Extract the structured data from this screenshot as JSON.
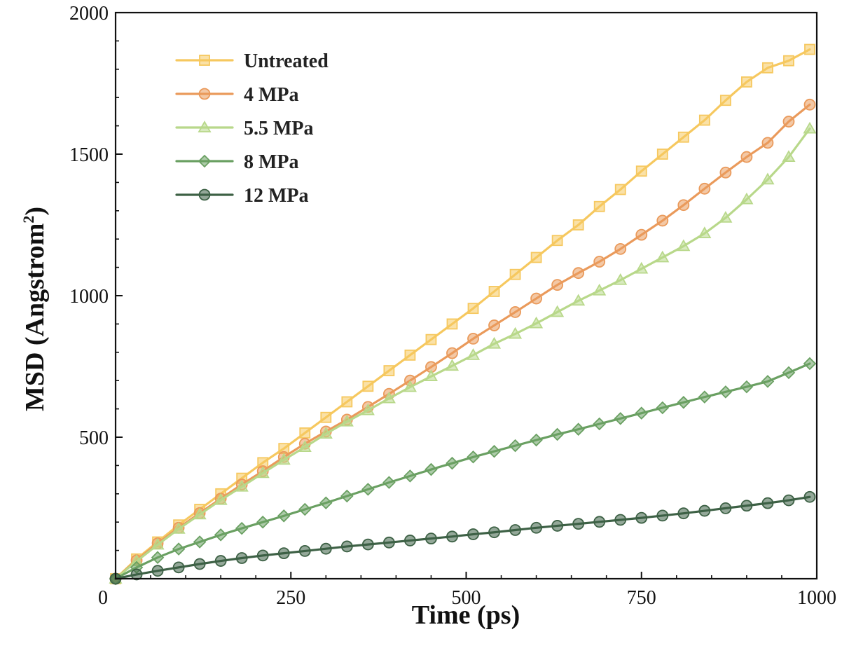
{
  "chart_data": {
    "type": "line",
    "title": "",
    "xlabel": "Time (ps)",
    "ylabel_main": "MSD (Angstrom",
    "ylabel_sup": "2",
    "ylabel_close": ")",
    "xlim": [
      0,
      1000
    ],
    "ylim": [
      0,
      2000
    ],
    "xticks": [
      0,
      250,
      500,
      750,
      1000
    ],
    "yticks": [
      500,
      1000,
      1500,
      2000
    ],
    "x_tick_labels": [
      "0",
      "250",
      "500",
      "750",
      "1000"
    ],
    "y_tick_labels": [
      "500",
      "1000",
      "1500",
      "2000"
    ],
    "legend_position": "top-left",
    "x": [
      0,
      30,
      60,
      90,
      120,
      150,
      180,
      210,
      240,
      270,
      300,
      330,
      360,
      390,
      420,
      450,
      480,
      510,
      540,
      570,
      600,
      630,
      660,
      690,
      720,
      750,
      780,
      810,
      840,
      870,
      900,
      930,
      960,
      990
    ],
    "series": [
      {
        "name": "Untreated",
        "color": "#f6c85f",
        "marker": "square",
        "values": [
          0,
          70,
          130,
          190,
          245,
          300,
          355,
          410,
          460,
          515,
          570,
          625,
          680,
          735,
          790,
          845,
          900,
          955,
          1015,
          1075,
          1135,
          1195,
          1250,
          1315,
          1375,
          1440,
          1500,
          1560,
          1620,
          1690,
          1755,
          1805,
          1830,
          1870
        ]
      },
      {
        "name": "4 MPa",
        "color": "#ea9a5b",
        "marker": "circle",
        "values": [
          0,
          65,
          125,
          180,
          232,
          283,
          333,
          380,
          430,
          477,
          520,
          562,
          607,
          653,
          700,
          748,
          797,
          848,
          895,
          942,
          990,
          1038,
          1080,
          1120,
          1165,
          1215,
          1265,
          1320,
          1378,
          1435,
          1490,
          1540,
          1615,
          1675
        ]
      },
      {
        "name": "5.5 MPa",
        "color": "#b8d88a",
        "marker": "triangle",
        "values": [
          0,
          62,
          120,
          176,
          227,
          278,
          325,
          373,
          420,
          465,
          512,
          555,
          595,
          637,
          677,
          715,
          752,
          790,
          830,
          865,
          902,
          942,
          982,
          1018,
          1055,
          1095,
          1135,
          1175,
          1220,
          1275,
          1340,
          1410,
          1490,
          1590
        ]
      },
      {
        "name": "8 MPa",
        "color": "#6aa062",
        "marker": "diamond",
        "values": [
          0,
          40,
          75,
          105,
          130,
          155,
          178,
          200,
          222,
          245,
          268,
          292,
          316,
          340,
          363,
          386,
          408,
          430,
          450,
          470,
          490,
          510,
          528,
          547,
          566,
          585,
          604,
          623,
          642,
          660,
          678,
          697,
          728,
          760
        ]
      },
      {
        "name": "12 MPa",
        "color": "#3d6145",
        "marker": "circle",
        "values": [
          0,
          15,
          28,
          40,
          52,
          63,
          73,
          82,
          90,
          98,
          106,
          114,
          121,
          128,
          135,
          142,
          149,
          157,
          164,
          172,
          180,
          187,
          194,
          201,
          208,
          215,
          223,
          231,
          240,
          249,
          258,
          267,
          277,
          289
        ]
      }
    ]
  }
}
